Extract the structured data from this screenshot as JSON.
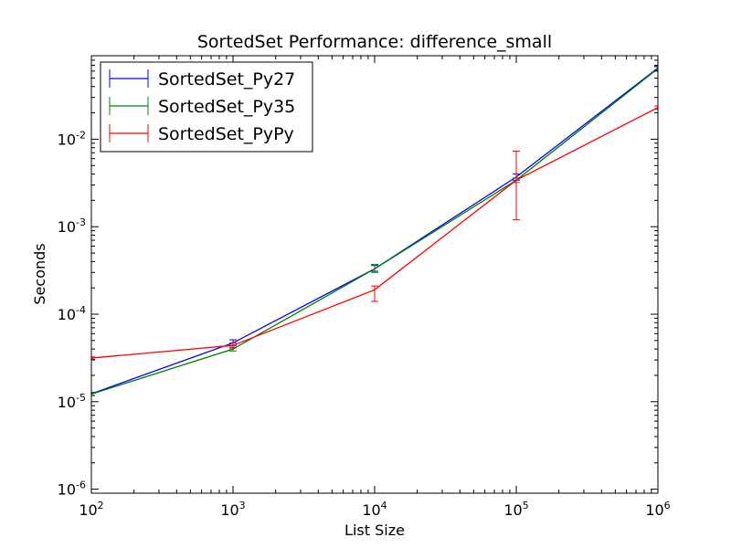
{
  "chart_data": {
    "type": "line",
    "title": "SortedSet Performance: difference_small",
    "xlabel": "List Size",
    "ylabel": "Seconds",
    "x_scale": "log",
    "y_scale": "log",
    "xlim": [
      100,
      1000000
    ],
    "ylim": [
      9e-07,
      0.09
    ],
    "x_ticks": [
      100,
      1000,
      10000,
      100000,
      1000000
    ],
    "x_tick_labels": [
      {
        "base": "10",
        "exp": "2"
      },
      {
        "base": "10",
        "exp": "3"
      },
      {
        "base": "10",
        "exp": "4"
      },
      {
        "base": "10",
        "exp": "5"
      },
      {
        "base": "10",
        "exp": "6"
      }
    ],
    "y_ticks": [
      1e-06,
      1e-05,
      0.0001,
      0.001,
      0.01
    ],
    "y_tick_labels": [
      {
        "base": "10",
        "exp": "-6"
      },
      {
        "base": "10",
        "exp": "-5"
      },
      {
        "base": "10",
        "exp": "-4"
      },
      {
        "base": "10",
        "exp": "-3"
      },
      {
        "base": "10",
        "exp": "-2"
      }
    ],
    "grid": false,
    "legend_position": "top-left",
    "x": [
      100,
      1000,
      10000,
      100000,
      1000000
    ],
    "series": [
      {
        "name": "SortedSet_Py27",
        "color": "#0000ff",
        "values": [
          1.23e-05,
          4.7e-05,
          0.00033,
          0.0037,
          0.065
        ],
        "err_low": [
          1.18e-05,
          4.4e-05,
          0.00031,
          0.0034,
          0.062
        ],
        "err_high": [
          1.28e-05,
          5.1e-05,
          0.00036,
          0.004,
          0.068
        ]
      },
      {
        "name": "SortedSet_Py35",
        "color": "#008000",
        "values": [
          1.22e-05,
          4e-05,
          0.00033,
          0.0034,
          0.064
        ],
        "err_low": [
          1.17e-05,
          3.8e-05,
          0.0003,
          0.0032,
          0.061
        ],
        "err_high": [
          1.27e-05,
          4.2e-05,
          0.00037,
          0.0036,
          0.067
        ]
      },
      {
        "name": "SortedSet_PyPy",
        "color": "#ff0000",
        "values": [
          3.15e-05,
          4.4e-05,
          0.00019,
          0.0034,
          0.023
        ],
        "err_low": [
          3.05e-05,
          4.1e-05,
          0.00014,
          0.0012,
          0.022
        ],
        "err_high": [
          3.25e-05,
          4.7e-05,
          0.00021,
          0.0073,
          0.024
        ]
      }
    ]
  }
}
